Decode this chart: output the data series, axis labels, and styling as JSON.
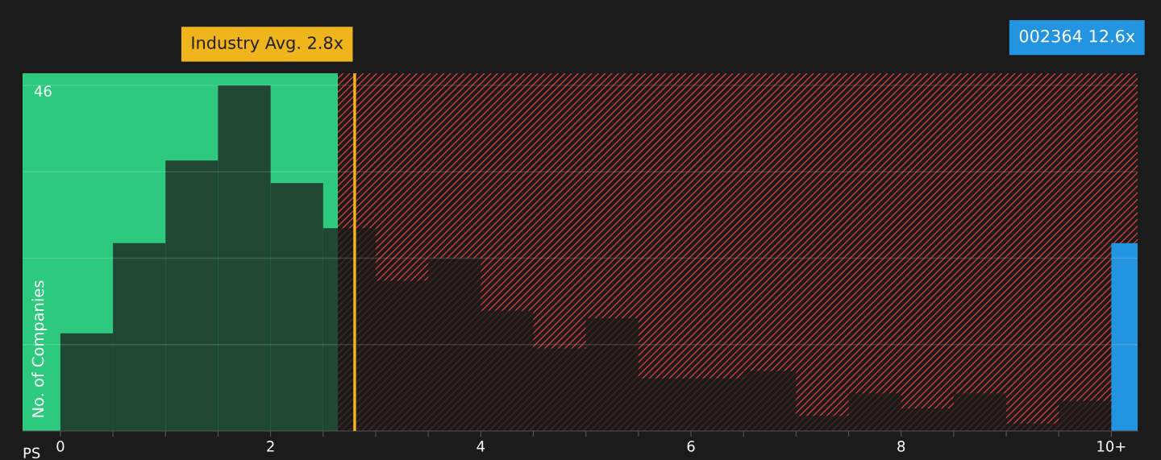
{
  "chart_data": {
    "type": "histogram",
    "xlabel": "PS",
    "ylabel": "No. of Companies",
    "series": [
      {
        "color": "#1b1b1b",
        "bins": [
          0,
          0.5,
          1,
          1.5,
          2,
          2.5,
          3,
          3.5,
          4,
          4.5,
          5,
          5.5,
          6,
          6.5,
          7,
          7.5,
          8,
          8.5,
          9,
          9.5,
          10
        ],
        "values": [
          13,
          25,
          36,
          46,
          33,
          27,
          20,
          23,
          16,
          11,
          15,
          7,
          7,
          8,
          2,
          5,
          3,
          5,
          1,
          4
        ]
      },
      {
        "type": "bar",
        "color": "#2394df",
        "x": [
          10.125
        ],
        "values": [
          25
        ]
      }
    ],
    "xlim": [
      -0.36,
      10.25
    ],
    "xticks": [
      0,
      {
        "value": 0.5,
        "label": null
      },
      {
        "value": 1,
        "label": null
      },
      {
        "value": 1.5,
        "label": null
      },
      2,
      {
        "value": 2.5,
        "label": null
      },
      {
        "value": 3,
        "label": null
      },
      {
        "value": 3.5,
        "label": null
      },
      4,
      {
        "value": 4.5,
        "label": null
      },
      {
        "value": 5,
        "label": null
      },
      {
        "value": 5.5,
        "label": null
      },
      6,
      {
        "value": 6.5,
        "label": null
      },
      {
        "value": 7,
        "label": null
      },
      {
        "value": 7.5,
        "label": null
      },
      8,
      {
        "value": 8.5,
        "label": null
      },
      {
        "value": 9,
        "label": null
      },
      {
        "value": 9.5,
        "label": null
      },
      {
        "value": 10,
        "label": "10+"
      }
    ],
    "ylim": [
      0,
      47.6
    ],
    "yticks": [
      {
        "value": 11.5,
        "label": null
      },
      {
        "value": 23,
        "label": null
      },
      {
        "value": 34.5,
        "label": null
      },
      46
    ],
    "grid": "y",
    "bands": [
      {
        "axis": "x",
        "from": -0.36,
        "to": 2.64,
        "color": "#2dc97e"
      },
      {
        "axis": "x",
        "from": 2.64,
        "to": 10.25,
        "color": "#d43a3a"
      }
    ],
    "ref_lines": [
      {
        "axis": "x",
        "value": 2.8,
        "label": "Industry Avg. 2.8x",
        "color": "#f0b41c"
      }
    ],
    "annotations": [
      "002364 12.6x"
    ]
  }
}
